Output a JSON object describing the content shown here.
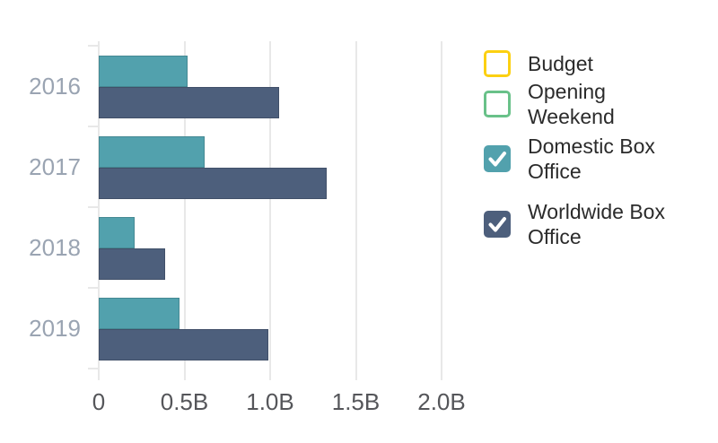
{
  "chart_data": {
    "type": "bar",
    "orientation": "horizontal",
    "title": "",
    "xlabel": "",
    "ylabel": "",
    "categories": [
      "2016",
      "2017",
      "2018",
      "2019"
    ],
    "series": [
      {
        "name": "Domestic Box Office",
        "color": "#52a1ad",
        "values_billions": [
          0.52,
          0.62,
          0.21,
          0.47
        ]
      },
      {
        "name": "Worldwide Box Office",
        "color": "#4d5f7c",
        "values_billions": [
          1.05,
          1.33,
          0.39,
          0.99
        ]
      }
    ],
    "x_ticks": [
      {
        "value": 0,
        "label": "0"
      },
      {
        "value": 0.5,
        "label": "0.5B"
      },
      {
        "value": 1.0,
        "label": "1.0B"
      },
      {
        "value": 1.5,
        "label": "1.5B"
      },
      {
        "value": 2.0,
        "label": "2.0B"
      }
    ],
    "xlim": [
      0,
      2.0
    ],
    "grid": "vertical-light-gray",
    "legend_position": "right"
  },
  "legend": {
    "items": [
      {
        "label": "Budget",
        "color": "#fcd012",
        "checked": false
      },
      {
        "label": "Opening Weekend",
        "color": "#69c189",
        "checked": false
      },
      {
        "label": "Domestic Box Office",
        "color": "#52a1ad",
        "checked": true
      },
      {
        "label": "Worldwide Box Office",
        "color": "#4d5f7c",
        "checked": true
      }
    ]
  },
  "colors": {
    "background": "#ffffff",
    "grid": "#e8e8e8",
    "axis_line": "#e8e8e8",
    "tick": "#e8e8e8",
    "year_label": "#9aa4b2",
    "x_label": "#55565a",
    "legend_text": "#2b2b2b",
    "checkmark": "#ffffff"
  }
}
